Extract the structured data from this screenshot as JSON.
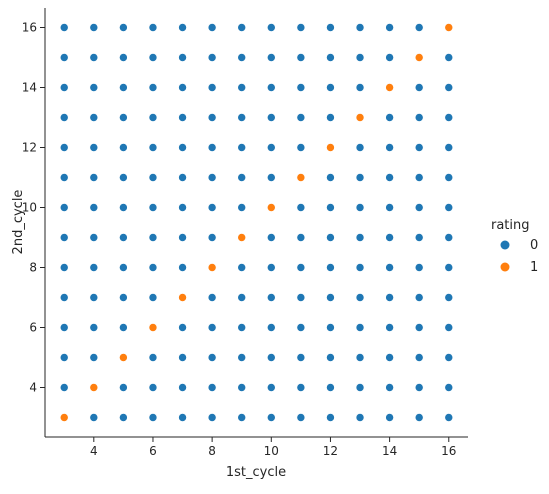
{
  "chart_data": {
    "type": "scatter",
    "title": "",
    "xlabel": "1st_cycle",
    "ylabel": "2nd_cycle",
    "xlim": [
      2.35,
      16.65
    ],
    "ylim": [
      2.35,
      16.65
    ],
    "xticks": [
      4,
      6,
      8,
      10,
      12,
      14,
      16
    ],
    "yticks": [
      4,
      6,
      8,
      10,
      12,
      14,
      16
    ],
    "grid": false,
    "legend": {
      "title": "rating",
      "placement": "right",
      "entries": [
        {
          "label": "0",
          "color": "#1f77b4"
        },
        {
          "label": "1",
          "color": "#ff7f0e"
        }
      ]
    },
    "x_values": [
      3,
      4,
      5,
      6,
      7,
      8,
      9,
      10,
      11,
      12,
      13,
      14,
      15,
      16
    ],
    "y_values": [
      3,
      4,
      5,
      6,
      7,
      8,
      9,
      10,
      11,
      12,
      13,
      14,
      15,
      16
    ],
    "grid_points_rating": 0,
    "rating_1_points": [
      [
        3,
        3
      ],
      [
        4,
        4
      ],
      [
        5,
        5
      ],
      [
        6,
        6
      ],
      [
        7,
        7
      ],
      [
        8,
        8
      ],
      [
        9,
        9
      ],
      [
        10,
        10
      ],
      [
        11,
        11
      ],
      [
        12,
        12
      ],
      [
        13,
        13
      ],
      [
        14,
        14
      ],
      [
        15,
        15
      ],
      [
        16,
        16
      ]
    ],
    "colors": {
      "rating_0": "#1f77b4",
      "rating_1": "#ff7f0e"
    }
  }
}
